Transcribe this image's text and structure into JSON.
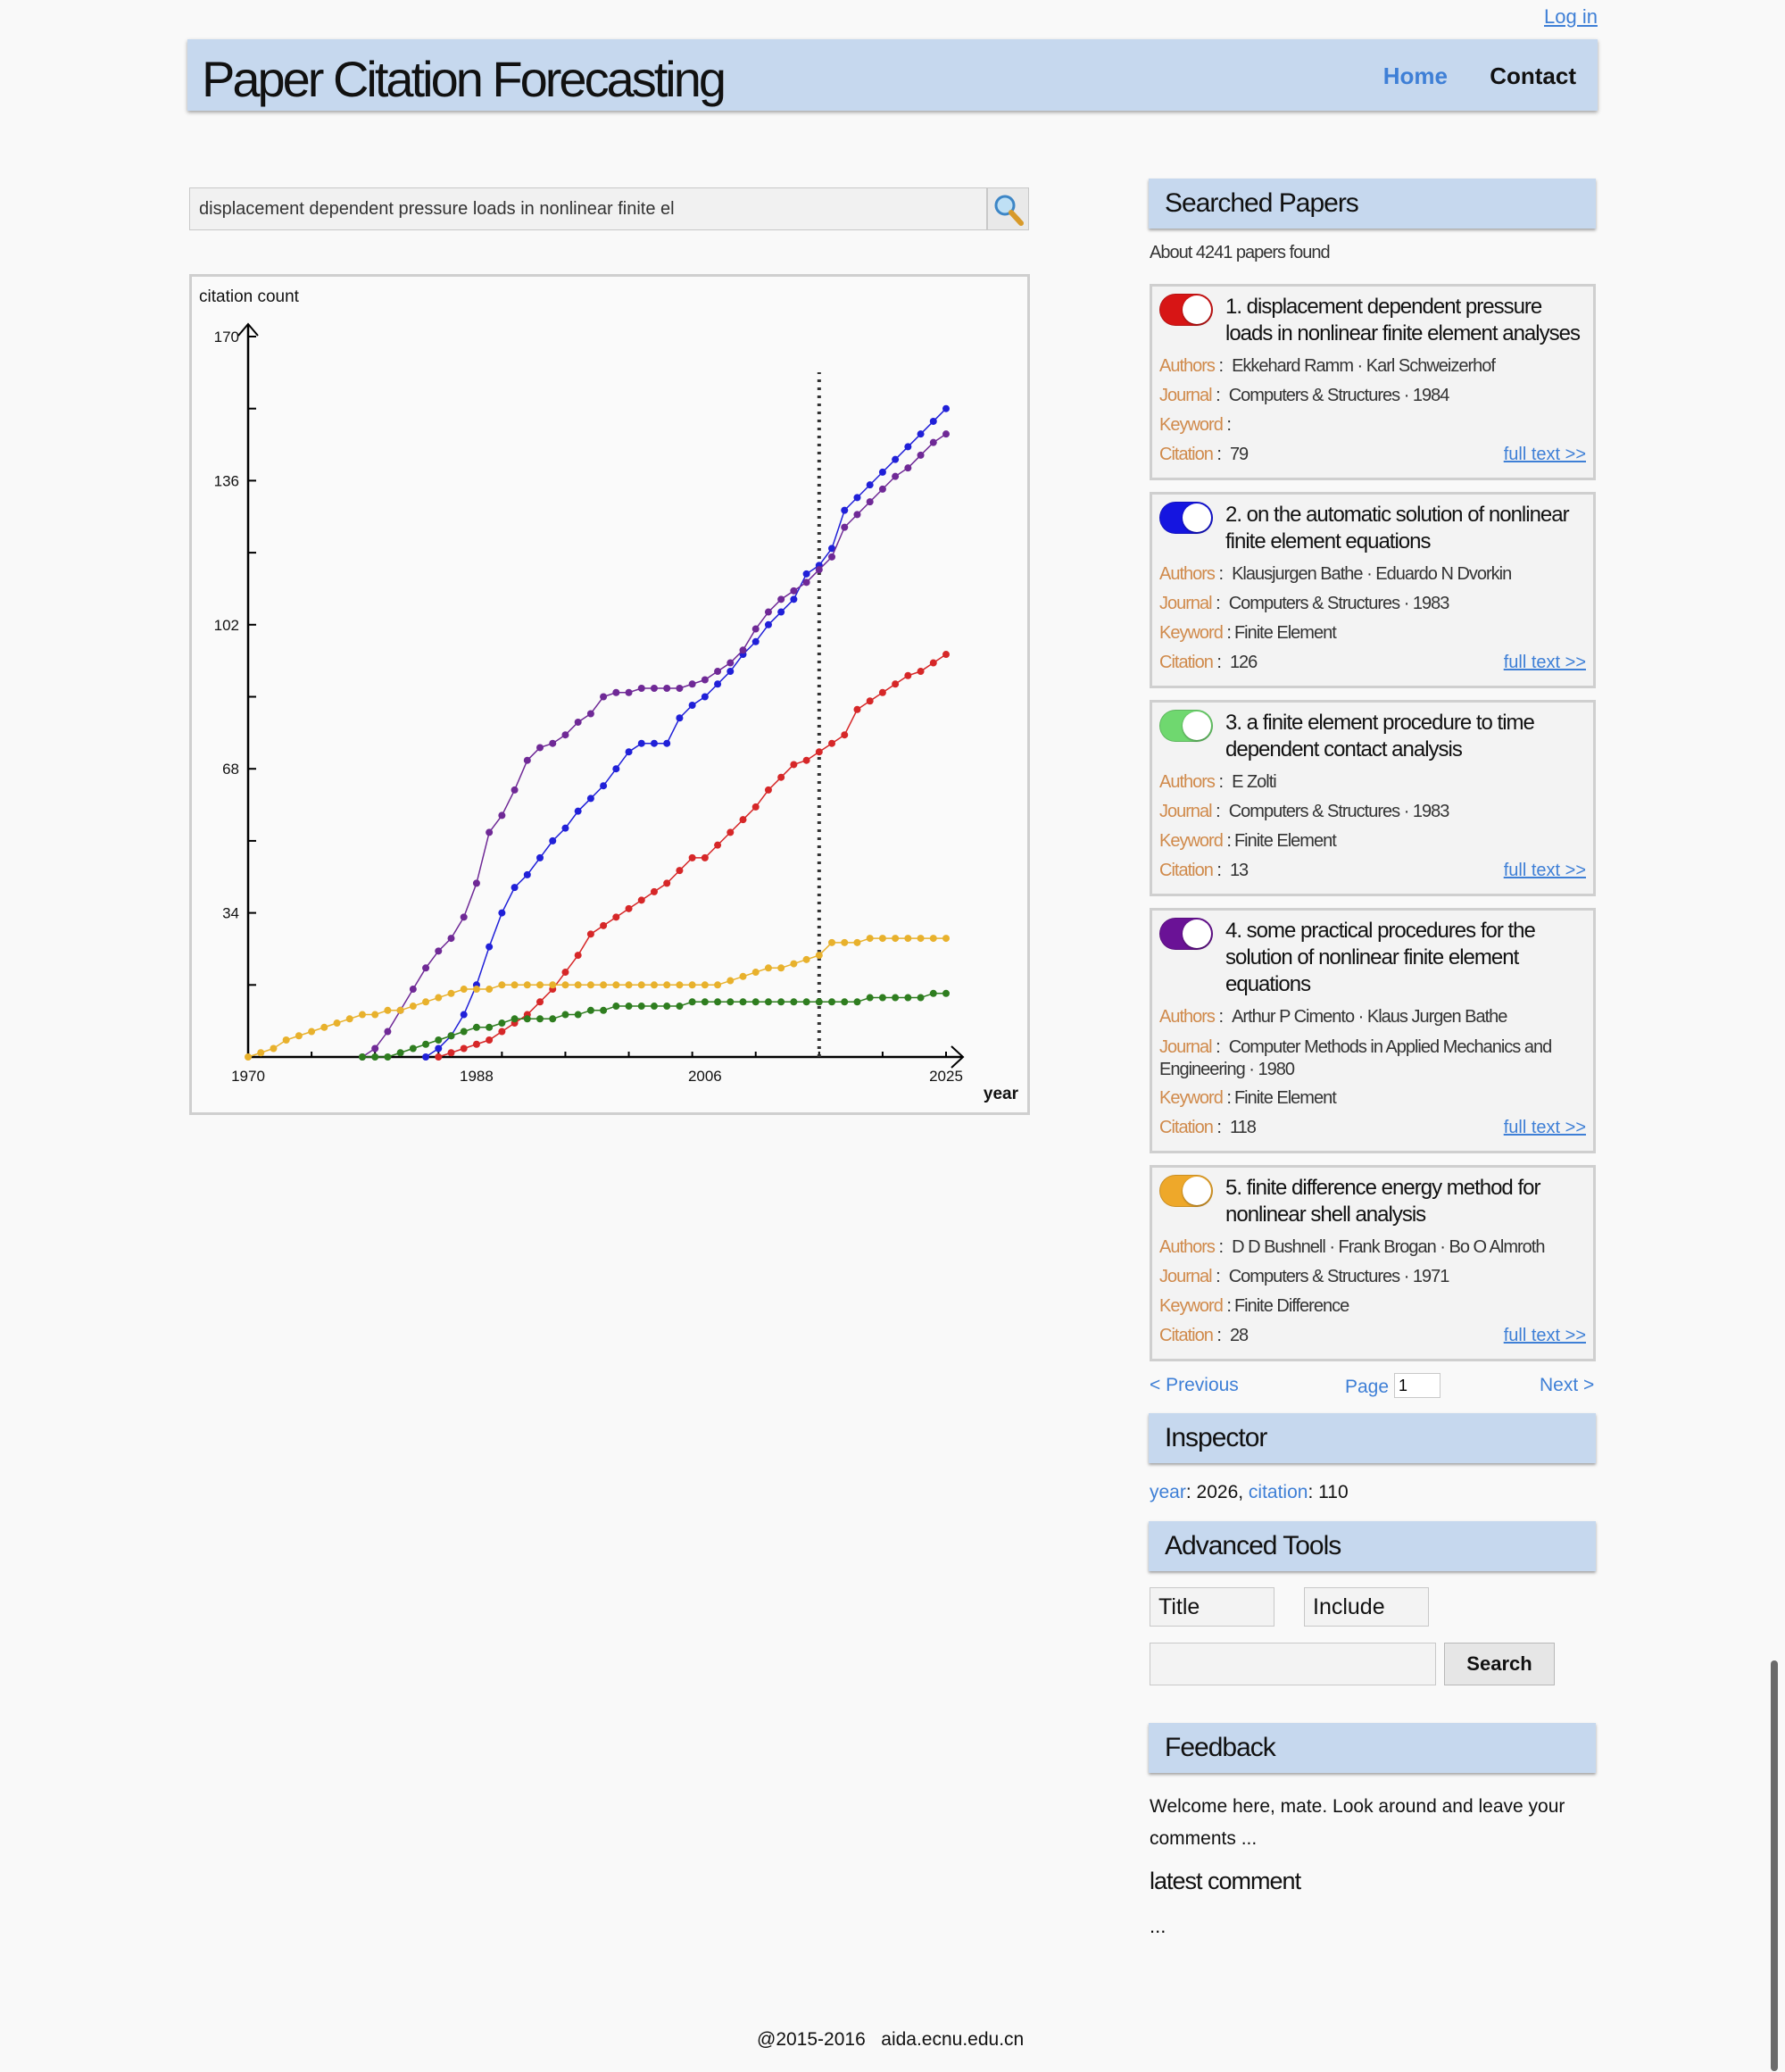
{
  "header": {
    "login": "Log in",
    "title": "Paper Citation Forecasting",
    "nav": {
      "home": "Home",
      "contact": "Contact"
    }
  },
  "search": {
    "value": "displacement dependent pressure loads in nonlinear finite el",
    "icon": "magnifier-icon"
  },
  "chart_data": {
    "type": "line",
    "ylabel": "citation count",
    "xlabel": "year",
    "xlim": [
      1970,
      2025
    ],
    "ylim": [
      0,
      170
    ],
    "x_ticks": [
      1970,
      1988,
      2006,
      2025
    ],
    "y_ticks": [
      34,
      68,
      102,
      136,
      170
    ],
    "x_tick_labels": [
      "1970",
      "1988",
      "2006",
      "2025"
    ],
    "y_tick_labels": [
      "34",
      "68",
      "102",
      "136",
      "170"
    ],
    "forecast_marker_year": 2015,
    "series": [
      {
        "color": "#d62728",
        "x": [
          1985,
          1986,
          1987,
          1988,
          1989,
          1990,
          1991,
          1992,
          1993,
          1994,
          1995,
          1996,
          1997,
          1998,
          1999,
          2000,
          2001,
          2002,
          2003,
          2004,
          2005,
          2006,
          2007,
          2008,
          2009,
          2010,
          2011,
          2012,
          2013,
          2014,
          2015,
          2016,
          2017,
          2018,
          2019,
          2020,
          2021,
          2022,
          2023,
          2024,
          2025
        ],
        "values": [
          0,
          1,
          2,
          3,
          4,
          6,
          8,
          10,
          13,
          16,
          20,
          24,
          29,
          31,
          33,
          35,
          37,
          39,
          41,
          44,
          47,
          47,
          50,
          53,
          56,
          59,
          63,
          66,
          69,
          70,
          72,
          74,
          76,
          82,
          84,
          86,
          88,
          90,
          91,
          93,
          95
        ]
      },
      {
        "color": "#2020d8",
        "x": [
          1984,
          1985,
          1986,
          1987,
          1988,
          1989,
          1990,
          1991,
          1992,
          1993,
          1994,
          1995,
          1996,
          1997,
          1998,
          1999,
          2000,
          2001,
          2002,
          2003,
          2004,
          2005,
          2006,
          2007,
          2008,
          2009,
          2010,
          2011,
          2012,
          2013,
          2014,
          2015,
          2016,
          2017,
          2018,
          2019,
          2020,
          2021,
          2022,
          2023,
          2024,
          2025
        ],
        "values": [
          0,
          2,
          5,
          10,
          17,
          26,
          34,
          40,
          43,
          47,
          51,
          54,
          58,
          61,
          64,
          68,
          72,
          74,
          74,
          74,
          80,
          83,
          85,
          88,
          91,
          95,
          98,
          102,
          105,
          108,
          114,
          116,
          120,
          129,
          132,
          135,
          138,
          141,
          144,
          147,
          150,
          153
        ]
      },
      {
        "color": "#6f2996",
        "x": [
          1979,
          1980,
          1981,
          1982,
          1983,
          1984,
          1985,
          1986,
          1987,
          1988,
          1989,
          1990,
          1991,
          1992,
          1993,
          1994,
          1995,
          1996,
          1997,
          1998,
          1999,
          2000,
          2001,
          2002,
          2003,
          2004,
          2005,
          2006,
          2007,
          2008,
          2009,
          2010,
          2011,
          2012,
          2013,
          2014,
          2015,
          2016,
          2017,
          2018,
          2019,
          2020,
          2021,
          2022,
          2023,
          2024,
          2025
        ],
        "values": [
          0,
          2,
          6,
          11,
          16,
          21,
          25,
          28,
          33,
          41,
          53,
          57,
          63,
          70,
          73,
          74,
          76,
          79,
          81,
          85,
          86,
          86,
          87,
          87,
          87,
          87,
          88,
          89,
          91,
          93,
          96,
          101,
          105,
          108,
          110,
          112,
          115,
          118,
          125,
          128,
          131,
          134,
          137,
          139,
          142,
          145,
          147
        ]
      },
      {
        "color": "#e8b12c",
        "x": [
          1970,
          1971,
          1972,
          1973,
          1974,
          1975,
          1976,
          1977,
          1978,
          1979,
          1980,
          1981,
          1982,
          1983,
          1984,
          1985,
          1986,
          1987,
          1988,
          1989,
          1990,
          1991,
          1992,
          1993,
          1994,
          1995,
          1996,
          1997,
          1998,
          1999,
          2000,
          2001,
          2002,
          2003,
          2004,
          2005,
          2006,
          2007,
          2008,
          2009,
          2010,
          2011,
          2012,
          2013,
          2014,
          2015,
          2016,
          2017,
          2018,
          2019,
          2020,
          2021,
          2022,
          2023,
          2024,
          2025
        ],
        "values": [
          0,
          1,
          2,
          4,
          5,
          6,
          7,
          8,
          9,
          10,
          10,
          11,
          11,
          12,
          13,
          14,
          15,
          16,
          16,
          16,
          17,
          17,
          17,
          17,
          17,
          17,
          17,
          17,
          17,
          17,
          17,
          17,
          17,
          17,
          17,
          17,
          17,
          17,
          18,
          19,
          20,
          21,
          21,
          22,
          23,
          24,
          27,
          27,
          27,
          28,
          28,
          28,
          28,
          28,
          28,
          28
        ]
      },
      {
        "color": "#2e7d1f",
        "x": [
          1979,
          1980,
          1981,
          1982,
          1983,
          1984,
          1985,
          1986,
          1987,
          1988,
          1989,
          1990,
          1991,
          1992,
          1993,
          1994,
          1995,
          1996,
          1997,
          1998,
          1999,
          2000,
          2001,
          2002,
          2003,
          2004,
          2005,
          2006,
          2007,
          2008,
          2009,
          2010,
          2011,
          2012,
          2013,
          2014,
          2015,
          2016,
          2017,
          2018,
          2019,
          2020,
          2021,
          2022,
          2023,
          2024,
          2025
        ],
        "values": [
          0,
          0,
          0,
          1,
          2,
          3,
          4,
          5,
          6,
          7,
          7,
          8,
          9,
          9,
          9,
          9,
          10,
          10,
          11,
          11,
          12,
          12,
          12,
          12,
          12,
          12,
          13,
          13,
          13,
          13,
          13,
          13,
          13,
          13,
          13,
          13,
          13,
          13,
          13,
          13,
          14,
          14,
          14,
          14,
          14,
          15,
          15
        ]
      }
    ]
  },
  "sidebar": {
    "searched_title": "Searched Papers",
    "found": "About 4241 papers found",
    "labels": {
      "authors": "Authors",
      "journal": "Journal",
      "keyword": "Keyword",
      "citation": "Citation",
      "sep": ":",
      "fulltext": "full text >>"
    },
    "papers": [
      {
        "toggle_color": "#d71515",
        "title": "1. displacement dependent pressure loads in nonlinear finite element analyses",
        "authors": "Ekkehard Ramm · Karl Schweizerhof",
        "journal": "Computers & Structures · 1984",
        "keyword": "",
        "citation": "79"
      },
      {
        "toggle_color": "#1515e0",
        "title": "2. on the automatic solution of nonlinear finite element equations",
        "authors": "Klausjurgen Bathe · Eduardo N Dvorkin",
        "journal": "Computers & Structures · 1983",
        "keyword": "Finite Element",
        "citation": "126"
      },
      {
        "toggle_color": "#6fd86f",
        "title": "3. a finite element procedure to time dependent contact analysis",
        "authors": "E Zolti",
        "journal": "Computers & Structures · 1983",
        "keyword": "Finite Element",
        "citation": "13"
      },
      {
        "toggle_color": "#6a1296",
        "title": "4. some practical procedures for the solution of nonlinear finite element equations",
        "authors": "Arthur P Cimento · Klaus Jurgen Bathe",
        "journal": "Computer Methods in Applied Mechanics and Engineering · 1980",
        "keyword": "Finite Element",
        "citation": "118"
      },
      {
        "toggle_color": "#eea82a",
        "title": "5. finite difference energy method for nonlinear shell analysis",
        "authors": "D D Bushnell · Frank Brogan · Bo O Almroth",
        "journal": "Computers & Structures · 1971",
        "keyword": "Finite Difference",
        "citation": "28"
      }
    ],
    "pager": {
      "prev": "< Previous",
      "page_label": "Page",
      "page_value": "1",
      "next": "Next >"
    },
    "inspector": {
      "title": "Inspector",
      "year_label": "year",
      "year": "2026",
      "citation_label": "citation",
      "citation": "110"
    },
    "advanced": {
      "title": "Advanced Tools",
      "field": "Title",
      "mode": "Include",
      "search": "Search"
    },
    "feedback": {
      "title": "Feedback",
      "text": "Welcome here, mate. Look around and leave your comments ...",
      "latest": "latest comment",
      "comment": "..."
    }
  },
  "footer": {
    "copyright": "@2015-2016",
    "site": "aida.ecnu.edu.cn"
  }
}
